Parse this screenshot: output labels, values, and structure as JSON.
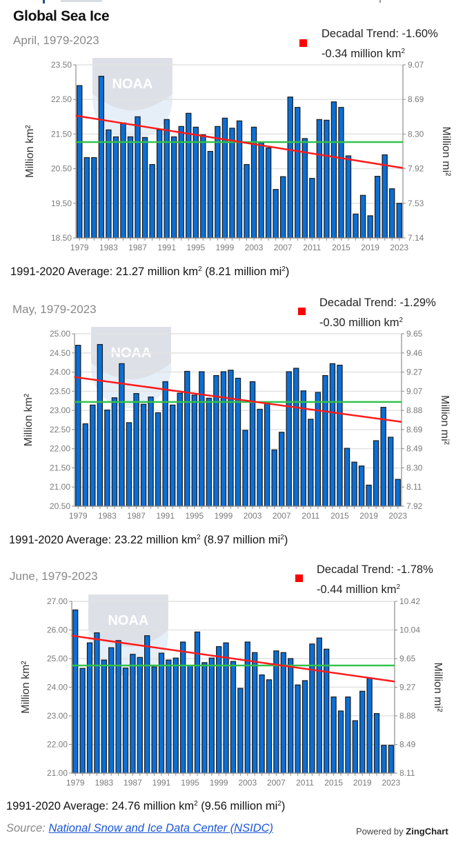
{
  "page": {
    "title": "Global Sea Ice",
    "average_prefix": "1991-2020 Average: ",
    "source_label": "Source:",
    "source_link_text": "National Snow and Ice Data Center (NSIDC)",
    "powered_by_label": "Powered by",
    "powered_by_brand": "ZingChart",
    "watermark_text": "NOAA"
  },
  "colors": {
    "bar": "#0a6fd6",
    "bar_border": "#1a1a1a",
    "trend": "#ff1a1a",
    "average": "#33c24a",
    "grid": "#e2e2e2",
    "axis": "#8c8c8c",
    "tick_text": "#7a7a7a"
  },
  "chart_data": [
    {
      "type": "bar",
      "title": "April, 1979-2023",
      "legend": {
        "line1": "Decadal Trend: -1.60%",
        "line2_value": "-0.34 million km",
        "position": "top-right"
      },
      "average_label": {
        "km": "21.27 million km",
        "mi": "(8.21 million mi",
        "close": ")"
      },
      "xlabel": "",
      "ylabel": "Million km²",
      "ylabel_right": "Million mi²",
      "ylim": [
        18.5,
        23.5
      ],
      "yticks": [
        "23.50",
        "22.50",
        "21.50",
        "20.50",
        "19.50",
        "18.50"
      ],
      "yticks_right": [
        "9.07",
        "8.69",
        "8.30",
        "7.92",
        "7.53",
        "7.14"
      ],
      "xticks": [
        "1979",
        "1983",
        "1987",
        "1991",
        "1995",
        "1999",
        "2003",
        "2007",
        "2011",
        "2015",
        "2019",
        "2023"
      ],
      "grid": true,
      "categories": [
        1979,
        1980,
        1981,
        1982,
        1983,
        1984,
        1985,
        1986,
        1987,
        1988,
        1989,
        1990,
        1991,
        1992,
        1993,
        1994,
        1995,
        1996,
        1997,
        1998,
        1999,
        2000,
        2001,
        2002,
        2003,
        2004,
        2005,
        2006,
        2007,
        2008,
        2009,
        2010,
        2011,
        2012,
        2013,
        2014,
        2015,
        2016,
        2017,
        2018,
        2019,
        2020,
        2021,
        2022,
        2023
      ],
      "values": [
        22.9,
        20.82,
        20.82,
        23.17,
        21.62,
        21.42,
        21.82,
        21.42,
        22.0,
        21.4,
        20.62,
        21.62,
        21.92,
        21.42,
        21.72,
        22.1,
        21.7,
        21.48,
        21.0,
        21.72,
        21.96,
        21.67,
        21.88,
        20.62,
        21.7,
        21.25,
        21.1,
        19.9,
        20.27,
        22.57,
        22.27,
        21.37,
        20.22,
        21.92,
        21.9,
        22.43,
        22.27,
        20.87,
        19.19,
        19.73,
        19.14,
        20.28,
        20.9,
        19.92,
        19.5
      ],
      "trend_line": {
        "start": 22.03,
        "end": 20.52
      },
      "average": 21.27
    },
    {
      "type": "bar",
      "title": "May, 1979-2023",
      "legend": {
        "line1": "Decadal Trend: -1.29%",
        "line2_value": "-0.30 million km",
        "position": "top-right"
      },
      "average_label": {
        "km": "23.22 million km",
        "mi": "(8.97 million mi",
        "close": ")"
      },
      "xlabel": "",
      "ylabel": "Million km²",
      "ylabel_right": "Million mi²",
      "ylim": [
        20.5,
        25.0
      ],
      "yticks": [
        "25.00",
        "24.50",
        "24.00",
        "23.50",
        "23.00",
        "22.50",
        "22.00",
        "21.50",
        "21.00",
        "20.50"
      ],
      "yticks_right": [
        "9.65",
        "9.46",
        "9.27",
        "9.07",
        "8.88",
        "8.69",
        "8.49",
        "8.30",
        "8.11",
        "7.92"
      ],
      "xticks": [
        "1979",
        "1983",
        "1987",
        "1991",
        "1995",
        "1999",
        "2003",
        "2007",
        "2011",
        "2015",
        "2019",
        "2023"
      ],
      "grid": true,
      "categories": [
        1979,
        1980,
        1981,
        1982,
        1983,
        1984,
        1985,
        1986,
        1987,
        1988,
        1989,
        1990,
        1991,
        1992,
        1993,
        1994,
        1995,
        1996,
        1997,
        1998,
        1999,
        2000,
        2001,
        2002,
        2003,
        2004,
        2005,
        2006,
        2007,
        2008,
        2009,
        2010,
        2011,
        2012,
        2013,
        2014,
        2015,
        2016,
        2017,
        2018,
        2019,
        2020,
        2021,
        2022,
        2023
      ],
      "values": [
        24.7,
        22.65,
        23.14,
        24.72,
        23.01,
        23.33,
        24.22,
        22.68,
        23.44,
        23.16,
        23.35,
        22.94,
        23.75,
        23.14,
        23.45,
        24.02,
        23.4,
        24.01,
        23.32,
        23.91,
        24.01,
        24.05,
        23.84,
        22.48,
        23.75,
        23.03,
        23.2,
        21.97,
        22.43,
        24.01,
        24.1,
        23.51,
        22.77,
        23.47,
        23.91,
        24.22,
        24.18,
        22.01,
        21.65,
        21.55,
        21.05,
        22.21,
        23.08,
        22.3,
        21.2
      ],
      "trend_line": {
        "start": 23.87,
        "end": 22.7
      },
      "average": 23.22
    },
    {
      "type": "bar",
      "title": "June, 1979-2023",
      "legend": {
        "line1": "Decadal Trend: -1.78%",
        "line2_value": "-0.44 million km",
        "position": "top-right"
      },
      "average_label": {
        "km": "24.76 million km",
        "mi": "(9.56 million mi",
        "close": ")"
      },
      "xlabel": "",
      "ylabel": "Million km²",
      "ylabel_right": "Million mi²",
      "ylim": [
        21.0,
        27.0
      ],
      "yticks": [
        "27.00",
        "26.00",
        "25.00",
        "24.00",
        "23.00",
        "22.00",
        "21.00"
      ],
      "yticks_right": [
        "10.42",
        "10.04",
        "9.65",
        "9.27",
        "8.88",
        "8.49",
        "8.11"
      ],
      "xticks": [
        "1979",
        "1983",
        "1987",
        "1991",
        "1995",
        "1999",
        "2003",
        "2007",
        "2011",
        "2015",
        "2019",
        "2023"
      ],
      "grid": true,
      "categories": [
        1979,
        1980,
        1981,
        1982,
        1983,
        1984,
        1985,
        1986,
        1987,
        1988,
        1989,
        1990,
        1991,
        1992,
        1993,
        1994,
        1995,
        1996,
        1997,
        1998,
        1999,
        2000,
        2001,
        2002,
        2003,
        2004,
        2005,
        2006,
        2007,
        2008,
        2009,
        2010,
        2011,
        2012,
        2013,
        2014,
        2015,
        2016,
        2017,
        2018,
        2019,
        2020,
        2021,
        2022,
        2023
      ],
      "values": [
        26.7,
        24.66,
        25.55,
        25.9,
        24.95,
        25.38,
        25.63,
        24.67,
        25.15,
        25.04,
        25.8,
        24.71,
        25.19,
        24.95,
        25.02,
        25.58,
        24.75,
        25.93,
        24.86,
        25.02,
        25.42,
        25.55,
        24.9,
        23.96,
        25.58,
        25.21,
        24.43,
        24.26,
        25.27,
        25.21,
        25.0,
        24.08,
        24.23,
        25.51,
        25.72,
        25.33,
        23.66,
        23.17,
        23.66,
        22.83,
        23.86,
        24.31,
        23.08,
        21.97,
        21.97
      ],
      "trend_line": {
        "start": 25.8,
        "end": 24.2
      },
      "average": 24.76
    }
  ]
}
